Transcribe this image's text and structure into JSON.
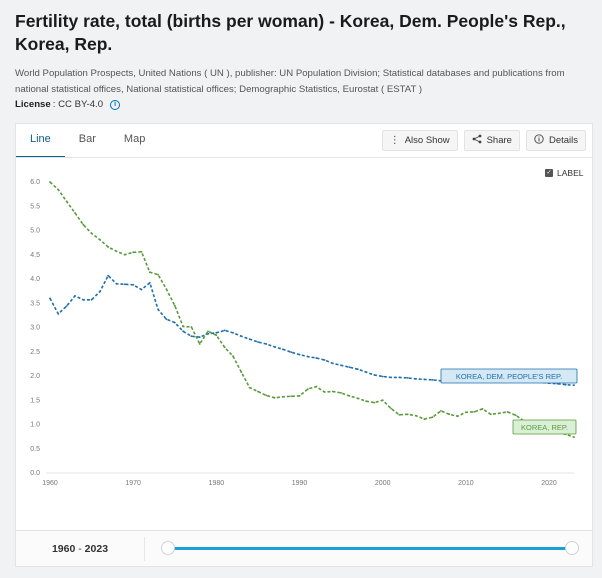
{
  "page": {
    "title": "Fertility rate, total (births per woman) - Korea, Dem. People's Rep., Korea, Rep.",
    "source": "World Population Prospects, United Nations ( UN ), publisher: UN Population Division; Statistical databases and publications from national statistical offices, National statistical offices; Demographic Statistics, Eurostat ( ESTAT )",
    "license_label": "License",
    "license_value": ": CC BY-4.0"
  },
  "tabs": [
    {
      "label": "Line",
      "active": true
    },
    {
      "label": "Bar",
      "active": false
    },
    {
      "label": "Map",
      "active": false
    }
  ],
  "actions": {
    "also_show": "Also Show",
    "share": "Share",
    "details": "Details"
  },
  "label_toggle": {
    "label": "LABEL",
    "checked": true
  },
  "range": {
    "start": "1960",
    "separator": "-",
    "end": "2023"
  },
  "colors": {
    "dprk": "#1f6fae",
    "rok": "#5a9a3a",
    "dprk_label_bg": "#d5e8f5",
    "rok_label_bg": "#daf0d6",
    "accent": "#0b5e8e",
    "slider": "#1a9fd6"
  },
  "chart_data": {
    "type": "line",
    "title": "Fertility rate, total (births per woman)",
    "xlabel": "",
    "ylabel": "",
    "xlim": [
      1960,
      2023
    ],
    "ylim": [
      0,
      6
    ],
    "xticks": [
      1960,
      1970,
      1980,
      1990,
      2000,
      2010,
      2020
    ],
    "yticks": [
      "0.0",
      "0.5",
      "1.0",
      "1.5",
      "2.0",
      "2.5",
      "3.0",
      "3.5",
      "4.0",
      "4.5",
      "5.0",
      "5.5",
      "6.0"
    ],
    "series": [
      {
        "name": "KOREA, DEM. PEOPLE'S REP.",
        "x": [
          1960,
          1961,
          1962,
          1963,
          1964,
          1965,
          1966,
          1967,
          1968,
          1969,
          1970,
          1971,
          1972,
          1973,
          1974,
          1975,
          1976,
          1977,
          1978,
          1979,
          1980,
          1981,
          1982,
          1983,
          1984,
          1985,
          1986,
          1987,
          1988,
          1989,
          1990,
          1991,
          1992,
          1993,
          1994,
          1995,
          1996,
          1997,
          1998,
          1999,
          2000,
          2001,
          2002,
          2003,
          2004,
          2005,
          2006,
          2007,
          2008,
          2009,
          2010,
          2011,
          2012,
          2013,
          2014,
          2015,
          2016,
          2017,
          2018,
          2019,
          2020,
          2021,
          2022,
          2023
        ],
        "values": [
          3.58,
          3.26,
          3.42,
          3.63,
          3.55,
          3.55,
          3.72,
          4.05,
          3.88,
          3.87,
          3.86,
          3.76,
          3.9,
          3.35,
          3.15,
          3.08,
          2.9,
          2.8,
          2.78,
          2.85,
          2.87,
          2.92,
          2.87,
          2.8,
          2.74,
          2.68,
          2.64,
          2.58,
          2.53,
          2.47,
          2.42,
          2.38,
          2.35,
          2.31,
          2.24,
          2.2,
          2.16,
          2.12,
          2.06,
          2.0,
          1.97,
          1.95,
          1.95,
          1.94,
          1.92,
          1.91,
          1.9,
          1.88,
          1.95,
          1.95,
          1.93,
          1.93,
          1.92,
          1.91,
          1.9,
          1.9,
          1.89,
          1.88,
          1.86,
          1.85,
          1.83,
          1.82,
          1.8,
          1.79
        ]
      },
      {
        "name": "KOREA, REP.",
        "x": [
          1960,
          1961,
          1962,
          1963,
          1964,
          1965,
          1966,
          1967,
          1968,
          1969,
          1970,
          1971,
          1972,
          1973,
          1974,
          1975,
          1976,
          1977,
          1978,
          1979,
          1980,
          1981,
          1982,
          1983,
          1984,
          1985,
          1986,
          1987,
          1988,
          1989,
          1990,
          1991,
          1992,
          1993,
          1994,
          1995,
          1996,
          1997,
          1998,
          1999,
          2000,
          2001,
          2002,
          2003,
          2004,
          2005,
          2006,
          2007,
          2008,
          2009,
          2010,
          2011,
          2012,
          2013,
          2014,
          2015,
          2016,
          2017,
          2018,
          2019,
          2020,
          2021,
          2022,
          2023
        ],
        "values": [
          5.98,
          5.82,
          5.58,
          5.34,
          5.1,
          4.92,
          4.79,
          4.64,
          4.55,
          4.48,
          4.53,
          4.54,
          4.12,
          4.07,
          3.77,
          3.43,
          3.0,
          2.99,
          2.64,
          2.9,
          2.82,
          2.57,
          2.39,
          2.06,
          1.74,
          1.66,
          1.58,
          1.53,
          1.55,
          1.56,
          1.57,
          1.71,
          1.76,
          1.65,
          1.66,
          1.63,
          1.57,
          1.52,
          1.46,
          1.43,
          1.48,
          1.31,
          1.18,
          1.19,
          1.16,
          1.09,
          1.13,
          1.26,
          1.19,
          1.15,
          1.23,
          1.24,
          1.3,
          1.19,
          1.21,
          1.24,
          1.17,
          1.05,
          0.98,
          0.92,
          0.84,
          0.81,
          0.78,
          0.72
        ]
      }
    ],
    "grid": false,
    "legend": "inline labels at line ends"
  }
}
